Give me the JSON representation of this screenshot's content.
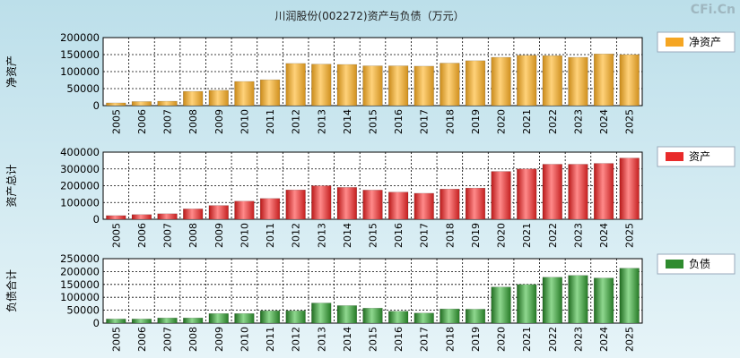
{
  "title": "川润股份(002272)资产与负债（万元）",
  "watermark": "CFi.Cn",
  "categories": [
    "2005",
    "2006",
    "2007",
    "2008",
    "2009",
    "2010",
    "2011",
    "2012",
    "2013",
    "2014",
    "2015",
    "2016",
    "2017",
    "2018",
    "2019",
    "2020",
    "2021",
    "2022",
    "2023",
    "2024",
    "2025"
  ],
  "chart_data": [
    {
      "type": "bar",
      "title": "",
      "ylabel": "净资产",
      "legend": "净资产",
      "legend_position": "right",
      "color": "#f5a623",
      "ylim": [
        0,
        200000
      ],
      "yticks": [
        0,
        50000,
        100000,
        150000,
        200000
      ],
      "grid": true,
      "values": [
        8000,
        12000,
        13000,
        42000,
        45000,
        71000,
        76000,
        124000,
        122000,
        121000,
        117000,
        117000,
        116000,
        125000,
        132000,
        142000,
        148000,
        147000,
        142000,
        152000,
        150000
      ]
    },
    {
      "type": "bar",
      "title": "",
      "ylabel": "资产总计",
      "legend": "资产",
      "legend_position": "right",
      "color": "#e82a2a",
      "ylim": [
        0,
        400000
      ],
      "yticks": [
        0,
        100000,
        200000,
        300000,
        400000
      ],
      "grid": true,
      "values": [
        22000,
        28000,
        33000,
        62000,
        82000,
        108000,
        124000,
        175000,
        200000,
        190000,
        174000,
        162000,
        155000,
        180000,
        186000,
        285000,
        300000,
        328000,
        328000,
        333000,
        365000
      ]
    },
    {
      "type": "bar",
      "title": "",
      "ylabel": "负债合计",
      "legend": "负债",
      "legend_position": "right",
      "color": "#2e8b2e",
      "ylim": [
        0,
        250000
      ],
      "yticks": [
        0,
        50000,
        100000,
        150000,
        200000,
        250000
      ],
      "grid": true,
      "values": [
        16000,
        16000,
        20000,
        20000,
        37000,
        37000,
        48000,
        48000,
        78000,
        68000,
        58000,
        46000,
        39000,
        55000,
        54000,
        140000,
        150000,
        178000,
        185000,
        175000,
        213000
      ]
    }
  ]
}
